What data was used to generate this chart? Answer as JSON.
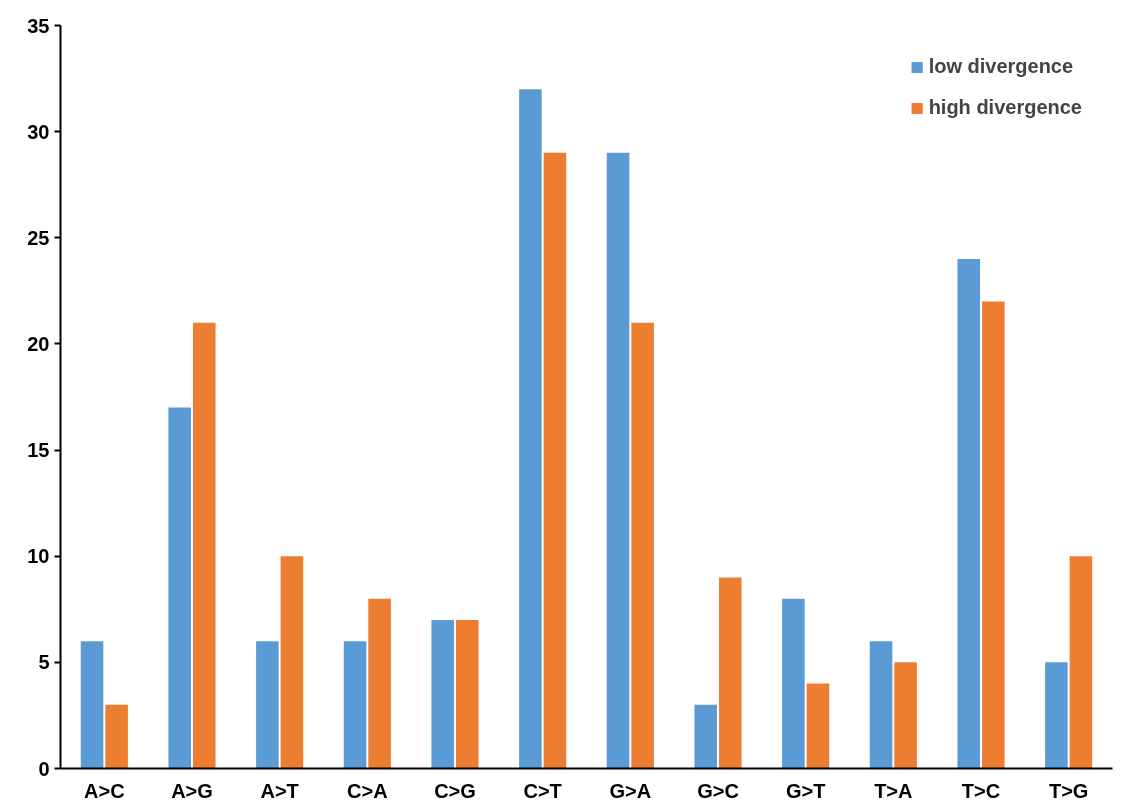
{
  "chart_data": {
    "type": "bar",
    "categories": [
      "A>C",
      "A>G",
      "A>T",
      "C>A",
      "C>G",
      "C>T",
      "G>A",
      "G>C",
      "G>T",
      "T>A",
      "T>C",
      "T>G"
    ],
    "series": [
      {
        "name": "low divergence",
        "color": "#5b9bd5",
        "values": [
          6,
          17,
          6,
          6,
          7,
          32,
          29,
          3,
          8,
          6,
          24,
          5
        ]
      },
      {
        "name": "high divergence",
        "color": "#ed7d31",
        "values": [
          3,
          21,
          10,
          8,
          7,
          29,
          21,
          9,
          4,
          5,
          22,
          10
        ]
      }
    ],
    "ylim": [
      0,
      35
    ],
    "yticks": [
      0,
      5,
      10,
      15,
      20,
      25,
      30,
      35
    ],
    "grid": false,
    "legend": "top right"
  }
}
